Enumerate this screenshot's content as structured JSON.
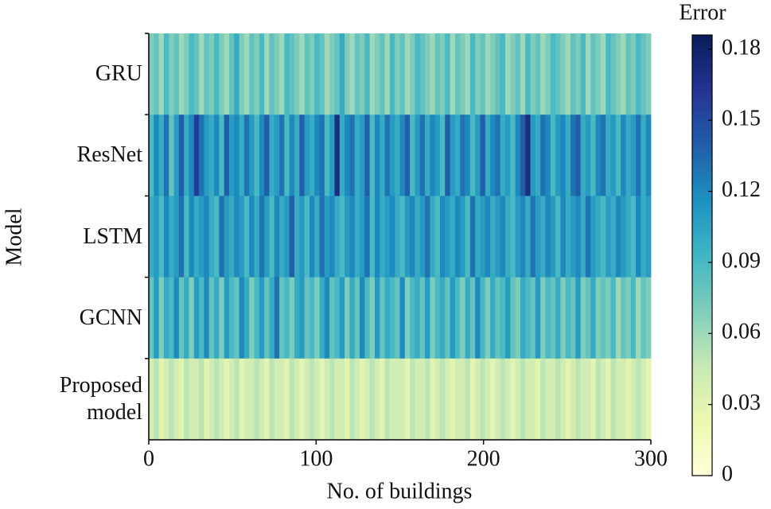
{
  "chart_data": {
    "type": "heatmap",
    "x_label": "No. of buildings",
    "y_label": "Model",
    "xlim": [
      0,
      300
    ],
    "xticks": [
      0,
      100,
      200,
      300
    ],
    "series": [
      {
        "name": "GRU",
        "values": [
          0.07,
          0.08,
          0.06,
          0.09,
          0.07,
          0.08,
          0.06,
          0.07,
          0.09,
          0.08,
          0.06,
          0.08,
          0.07,
          0.09,
          0.07,
          0.06,
          0.08,
          0.1,
          0.07,
          0.06,
          0.08,
          0.07,
          0.09,
          0.06,
          0.08,
          0.07,
          0.06,
          0.09,
          0.08,
          0.07,
          0.06,
          0.08,
          0.07,
          0.09,
          0.08,
          0.06,
          0.07,
          0.08,
          0.1,
          0.07,
          0.06,
          0.08,
          0.07,
          0.09,
          0.06,
          0.07,
          0.08,
          0.06,
          0.09,
          0.07,
          0.08,
          0.06,
          0.07,
          0.09,
          0.08,
          0.07,
          0.06,
          0.08,
          0.07,
          0.09,
          0.06,
          0.08,
          0.07,
          0.06,
          0.09,
          0.07,
          0.08,
          0.06,
          0.07,
          0.08,
          0.09,
          0.06,
          0.07,
          0.08,
          0.06,
          0.09,
          0.07,
          0.08,
          0.06,
          0.07,
          0.09,
          0.08,
          0.07,
          0.06,
          0.08,
          0.07,
          0.09,
          0.06,
          0.08,
          0.07,
          0.06,
          0.09,
          0.08,
          0.07,
          0.06,
          0.08,
          0.07,
          0.09,
          0.08,
          0.07
        ]
      },
      {
        "name": "ResNet",
        "values": [
          0.09,
          0.12,
          0.1,
          0.13,
          0.08,
          0.11,
          0.14,
          0.1,
          0.12,
          0.16,
          0.13,
          0.11,
          0.1,
          0.12,
          0.09,
          0.14,
          0.11,
          0.12,
          0.1,
          0.13,
          0.11,
          0.09,
          0.12,
          0.14,
          0.1,
          0.11,
          0.13,
          0.09,
          0.12,
          0.1,
          0.14,
          0.11,
          0.1,
          0.12,
          0.13,
          0.09,
          0.11,
          0.17,
          0.1,
          0.12,
          0.13,
          0.1,
          0.11,
          0.14,
          0.09,
          0.12,
          0.1,
          0.13,
          0.11,
          0.1,
          0.12,
          0.14,
          0.09,
          0.11,
          0.13,
          0.1,
          0.12,
          0.11,
          0.09,
          0.14,
          0.11,
          0.1,
          0.13,
          0.12,
          0.09,
          0.11,
          0.14,
          0.1,
          0.12,
          0.13,
          0.1,
          0.11,
          0.09,
          0.12,
          0.14,
          0.17,
          0.11,
          0.1,
          0.13,
          0.12,
          0.09,
          0.11,
          0.12,
          0.1,
          0.13,
          0.14,
          0.1,
          0.11,
          0.09,
          0.12,
          0.13,
          0.1,
          0.11,
          0.09,
          0.12,
          0.1,
          0.11,
          0.13,
          0.1,
          0.12
        ]
      },
      {
        "name": "LSTM",
        "values": [
          0.1,
          0.11,
          0.09,
          0.12,
          0.1,
          0.11,
          0.13,
          0.09,
          0.12,
          0.1,
          0.11,
          0.12,
          0.1,
          0.09,
          0.13,
          0.11,
          0.1,
          0.12,
          0.11,
          0.09,
          0.12,
          0.1,
          0.13,
          0.11,
          0.09,
          0.12,
          0.1,
          0.11,
          0.14,
          0.1,
          0.11,
          0.09,
          0.12,
          0.1,
          0.13,
          0.11,
          0.12,
          0.1,
          0.09,
          0.11,
          0.12,
          0.1,
          0.11,
          0.13,
          0.09,
          0.12,
          0.1,
          0.11,
          0.12,
          0.1,
          0.09,
          0.11,
          0.12,
          0.1,
          0.11,
          0.13,
          0.1,
          0.09,
          0.12,
          0.11,
          0.1,
          0.12,
          0.11,
          0.09,
          0.13,
          0.1,
          0.11,
          0.12,
          0.1,
          0.11,
          0.12,
          0.1,
          0.09,
          0.11,
          0.12,
          0.1,
          0.13,
          0.11,
          0.1,
          0.12,
          0.11,
          0.09,
          0.12,
          0.1,
          0.11,
          0.12,
          0.1,
          0.13,
          0.11,
          0.1,
          0.09,
          0.11,
          0.1,
          0.12,
          0.11,
          0.1,
          0.09,
          0.12,
          0.1,
          0.11
        ]
      },
      {
        "name": "GCNN",
        "values": [
          0.08,
          0.11,
          0.07,
          0.1,
          0.09,
          0.12,
          0.08,
          0.1,
          0.07,
          0.11,
          0.09,
          0.12,
          0.08,
          0.1,
          0.07,
          0.11,
          0.09,
          0.08,
          0.12,
          0.1,
          0.07,
          0.09,
          0.11,
          0.08,
          0.1,
          0.13,
          0.08,
          0.09,
          0.07,
          0.1,
          0.11,
          0.08,
          0.09,
          0.07,
          0.1,
          0.12,
          0.08,
          0.09,
          0.11,
          0.07,
          0.1,
          0.08,
          0.12,
          0.09,
          0.07,
          0.11,
          0.08,
          0.1,
          0.09,
          0.08,
          0.12,
          0.07,
          0.09,
          0.1,
          0.08,
          0.11,
          0.07,
          0.09,
          0.1,
          0.08,
          0.11,
          0.09,
          0.07,
          0.1,
          0.08,
          0.12,
          0.09,
          0.07,
          0.1,
          0.08,
          0.09,
          0.11,
          0.08,
          0.07,
          0.1,
          0.09,
          0.08,
          0.11,
          0.07,
          0.09,
          0.08,
          0.1,
          0.07,
          0.09,
          0.08,
          0.11,
          0.07,
          0.08,
          0.1,
          0.07,
          0.08,
          0.07,
          0.09,
          0.06,
          0.08,
          0.07,
          0.09,
          0.06,
          0.08,
          0.07
        ]
      },
      {
        "name": "Proposed model",
        "values": [
          0.04,
          0.05,
          0.03,
          0.04,
          0.05,
          0.04,
          0.03,
          0.05,
          0.04,
          0.04,
          0.05,
          0.03,
          0.04,
          0.05,
          0.04,
          0.03,
          0.04,
          0.05,
          0.03,
          0.04,
          0.04,
          0.05,
          0.04,
          0.03,
          0.05,
          0.04,
          0.04,
          0.03,
          0.05,
          0.04,
          0.03,
          0.04,
          0.05,
          0.04,
          0.03,
          0.04,
          0.05,
          0.04,
          0.04,
          0.03,
          0.05,
          0.04,
          0.03,
          0.04,
          0.05,
          0.04,
          0.03,
          0.05,
          0.04,
          0.04,
          0.04,
          0.03,
          0.05,
          0.04,
          0.04,
          0.05,
          0.03,
          0.04,
          0.05,
          0.04,
          0.03,
          0.04,
          0.04,
          0.05,
          0.03,
          0.04,
          0.05,
          0.04,
          0.03,
          0.04,
          0.05,
          0.04,
          0.03,
          0.04,
          0.05,
          0.04,
          0.04,
          0.03,
          0.05,
          0.04,
          0.04,
          0.05,
          0.04,
          0.03,
          0.04,
          0.05,
          0.04,
          0.04,
          0.03,
          0.05,
          0.04,
          0.03,
          0.05,
          0.04,
          0.04,
          0.03,
          0.04,
          0.05,
          0.04,
          0.03
        ]
      }
    ],
    "colorbar": {
      "label": "Error",
      "lim": [
        0,
        0.186
      ],
      "ticks": [
        0,
        0.03,
        0.06,
        0.09,
        0.12,
        0.15,
        0.18
      ],
      "colormap": [
        "#ffffd9",
        "#edf8b1",
        "#c7e9b4",
        "#7fcdbb",
        "#41b6c4",
        "#1d91c0",
        "#225ea8",
        "#253494",
        "#081d58"
      ]
    }
  }
}
